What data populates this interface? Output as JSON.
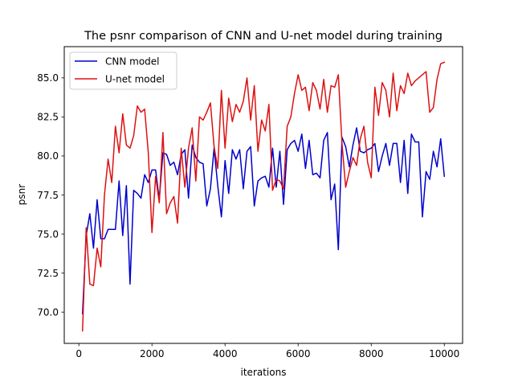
{
  "chart_data": {
    "type": "line",
    "title": "The psnr comparison of CNN and U-net model during training",
    "xlabel": "iterations",
    "ylabel": "psnr",
    "xlim": [
      -400,
      10500
    ],
    "ylim": [
      68,
      87
    ],
    "xticks": [
      0,
      2000,
      4000,
      6000,
      8000,
      10000
    ],
    "xtick_labels": [
      "0",
      "2000",
      "4000",
      "6000",
      "8000",
      "10000"
    ],
    "yticks": [
      70.0,
      72.5,
      75.0,
      77.5,
      80.0,
      82.5,
      85.0
    ],
    "ytick_labels": [
      "70.0",
      "72.5",
      "75.0",
      "77.5",
      "80.0",
      "82.5",
      "85.0"
    ],
    "grid": false,
    "legend_position": "top-left",
    "series": [
      {
        "name": "CNN model",
        "color": "#0000cc",
        "x": [
          100,
          200,
          300,
          400,
          500,
          600,
          700,
          800,
          900,
          1000,
          1100,
          1200,
          1300,
          1400,
          1500,
          1600,
          1700,
          1800,
          1900,
          2000,
          2100,
          2200,
          2300,
          2400,
          2500,
          2600,
          2700,
          2800,
          2900,
          3000,
          3100,
          3200,
          3300,
          3400,
          3500,
          3600,
          3700,
          3800,
          3900,
          4000,
          4100,
          4200,
          4300,
          4400,
          4500,
          4600,
          4700,
          4800,
          4900,
          5000,
          5100,
          5200,
          5300,
          5400,
          5500,
          5600,
          5700,
          5800,
          5900,
          6000,
          6100,
          6200,
          6300,
          6400,
          6500,
          6600,
          6700,
          6800,
          6900,
          7000,
          7100,
          7200,
          7300,
          7400,
          7500,
          7600,
          7700,
          7800,
          7900,
          8000,
          8100,
          8200,
          8300,
          8400,
          8500,
          8600,
          8700,
          8800,
          8900,
          9000,
          9100,
          9200,
          9300,
          9400,
          9500,
          9600,
          9700,
          9800,
          9900,
          10000
        ],
        "y": [
          69.9,
          74.9,
          76.3,
          74.1,
          77.2,
          74.7,
          74.7,
          75.3,
          75.3,
          75.3,
          78.4,
          74.9,
          78.1,
          71.8,
          77.8,
          77.6,
          77.3,
          78.8,
          78.3,
          79.1,
          79.1,
          77.2,
          80.2,
          80.1,
          79.4,
          79.6,
          78.8,
          80.1,
          80.4,
          77.3,
          80.7,
          79.9,
          79.6,
          79.5,
          76.8,
          77.9,
          80.5,
          78.1,
          76.1,
          79.7,
          77.6,
          80.4,
          79.8,
          80.4,
          77.9,
          80.3,
          80.6,
          76.8,
          78.4,
          78.6,
          78.7,
          78.0,
          80.5,
          78.0,
          80.3,
          76.9,
          80.4,
          80.8,
          81.0,
          80.3,
          81.4,
          79.2,
          81.0,
          78.8,
          78.9,
          78.6,
          81.0,
          81.5,
          77.2,
          78.2,
          74.0,
          81.2,
          80.6,
          79.3,
          80.7,
          81.8,
          80.3,
          80.2,
          80.4,
          80.5,
          80.8,
          79.0,
          80.0,
          80.8,
          79.4,
          80.8,
          80.8,
          78.3,
          81.0,
          77.6,
          81.4,
          80.9,
          80.9,
          76.1,
          79.0,
          78.5,
          80.3,
          79.3,
          81.1,
          78.7
        ]
      },
      {
        "name": "U-net model",
        "color": "#dd1111",
        "x": [
          100,
          200,
          300,
          400,
          500,
          600,
          700,
          800,
          900,
          1000,
          1100,
          1200,
          1300,
          1400,
          1500,
          1600,
          1700,
          1800,
          1900,
          2000,
          2100,
          2200,
          2300,
          2400,
          2500,
          2600,
          2700,
          2800,
          2900,
          3000,
          3100,
          3200,
          3300,
          3400,
          3500,
          3600,
          3700,
          3800,
          3900,
          4000,
          4100,
          4200,
          4300,
          4400,
          4500,
          4600,
          4700,
          4800,
          4900,
          5000,
          5100,
          5200,
          5300,
          5400,
          5500,
          5600,
          5700,
          5800,
          5900,
          6000,
          6100,
          6200,
          6300,
          6400,
          6500,
          6600,
          6700,
          6800,
          6900,
          7000,
          7100,
          7200,
          7300,
          7400,
          7500,
          7600,
          7700,
          7800,
          7900,
          8000,
          8100,
          8200,
          8300,
          8400,
          8500,
          8600,
          8700,
          8800,
          8900,
          9000,
          9100,
          9200,
          9300,
          9400,
          9500,
          9600,
          9700,
          9800,
          9900,
          10000
        ],
        "y": [
          68.8,
          75.4,
          71.8,
          71.7,
          74.1,
          72.9,
          77.5,
          79.8,
          78.3,
          81.9,
          80.2,
          82.7,
          80.7,
          80.5,
          81.3,
          83.2,
          82.8,
          83.0,
          80.2,
          75.1,
          78.7,
          77.0,
          81.5,
          76.3,
          77.0,
          77.4,
          75.7,
          80.5,
          78.0,
          80.5,
          81.8,
          78.4,
          82.5,
          82.3,
          82.8,
          83.4,
          80.6,
          79.2,
          84.2,
          80.5,
          83.7,
          82.2,
          83.3,
          82.8,
          83.5,
          85.0,
          82.3,
          84.5,
          80.3,
          82.3,
          81.6,
          83.3,
          77.8,
          78.5,
          78.4,
          77.9,
          81.9,
          82.5,
          84.0,
          85.2,
          84.2,
          84.4,
          82.9,
          84.7,
          84.2,
          83.0,
          84.9,
          82.8,
          84.5,
          84.4,
          85.2,
          80.8,
          78.0,
          79.0,
          79.9,
          79.4,
          81.1,
          81.9,
          79.6,
          78.6,
          84.4,
          82.6,
          84.7,
          84.2,
          82.5,
          85.3,
          82.9,
          84.5,
          84.0,
          85.3,
          84.5,
          84.8,
          85.0,
          85.2,
          85.4,
          82.8,
          83.1,
          84.9,
          85.9,
          86.0
        ]
      }
    ]
  }
}
